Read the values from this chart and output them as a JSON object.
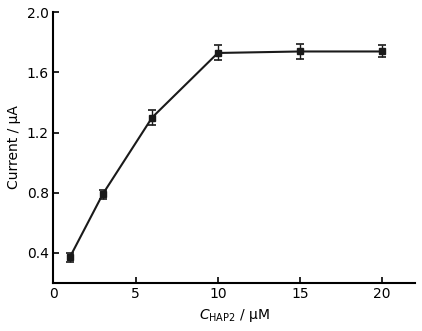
{
  "x": [
    1,
    3,
    6,
    10,
    15,
    20
  ],
  "y": [
    0.37,
    0.79,
    1.3,
    1.73,
    1.74,
    1.74
  ],
  "yerr": [
    0.03,
    0.03,
    0.05,
    0.05,
    0.05,
    0.04
  ],
  "xlabel_unit": " / μM",
  "ylabel": "Current / μA",
  "xlim": [
    0,
    22
  ],
  "ylim": [
    0.2,
    2.0
  ],
  "yticks": [
    0.4,
    0.8,
    1.2,
    1.6,
    2.0
  ],
  "xticks": [
    0,
    5,
    10,
    15,
    20
  ],
  "line_color": "#1a1a1a",
  "marker_color": "#1a1a1a",
  "marker": "s",
  "markersize": 5,
  "linewidth": 1.5,
  "capsize": 3,
  "background_color": "#ffffff"
}
